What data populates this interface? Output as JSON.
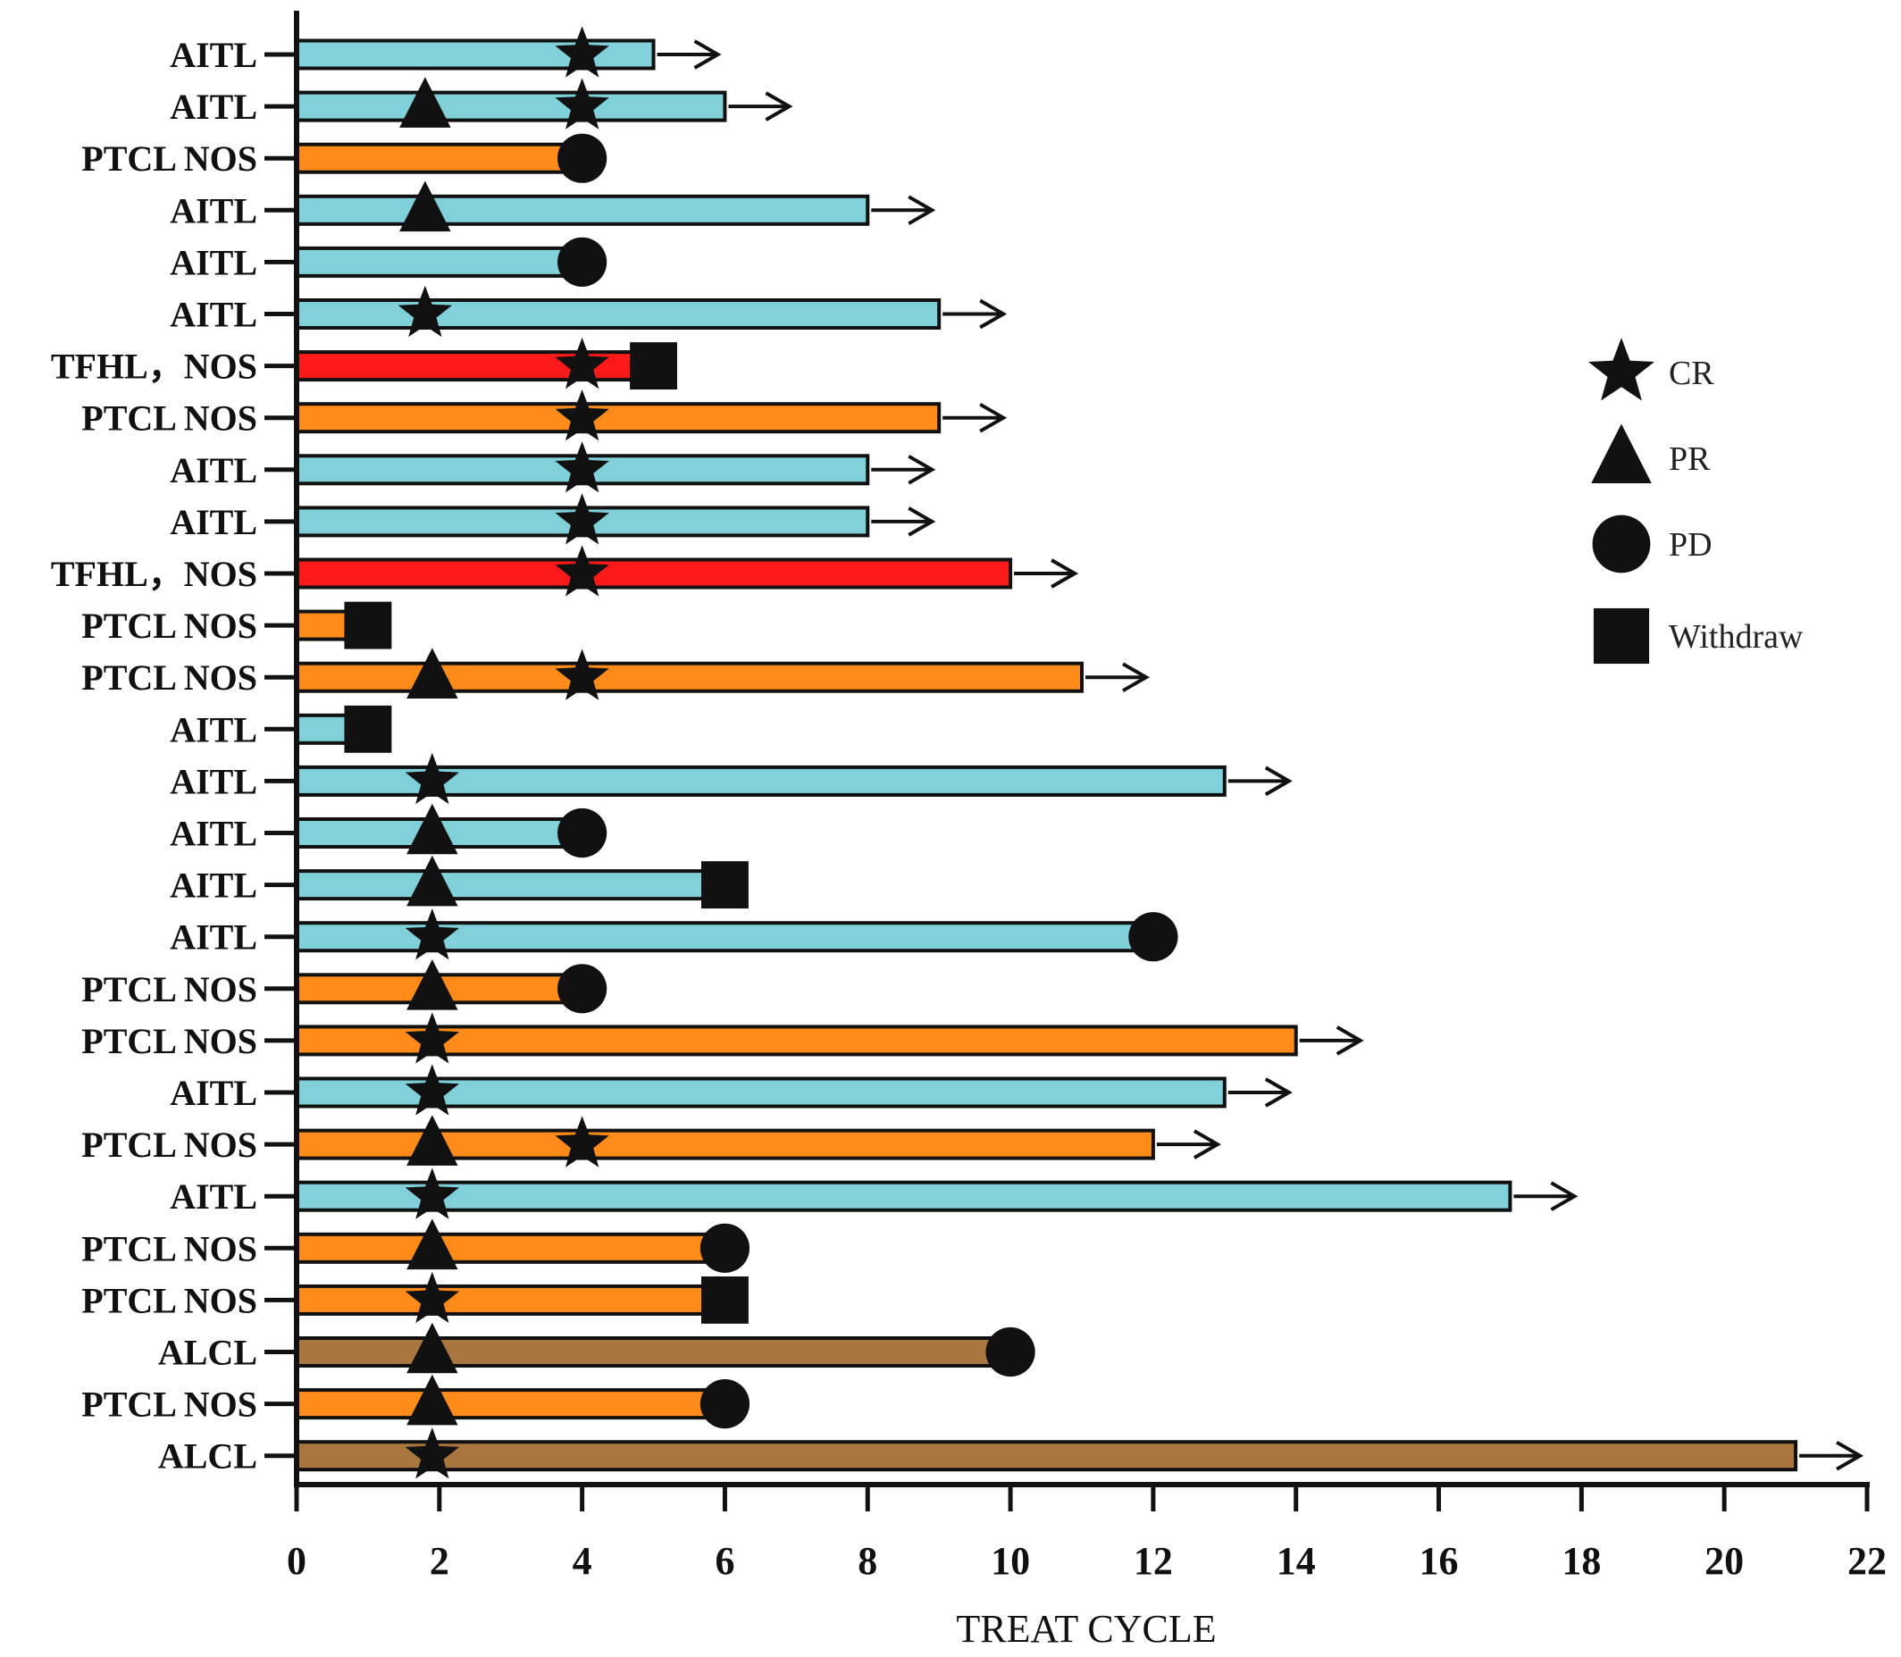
{
  "chart_data": {
    "type": "bar",
    "orientation": "horizontal",
    "title": "",
    "xlabel": "TREAT CYCLE",
    "ylabel": "",
    "xlim": [
      0,
      22
    ],
    "xticks": [
      0,
      2,
      4,
      6,
      8,
      10,
      12,
      14,
      16,
      18,
      20,
      22
    ],
    "grid": false,
    "legend_position": "right",
    "colors": {
      "AITL": "#7fd0d8",
      "PTCL NOS": "#ff8c1a",
      "TFHL": "#ff1a1a",
      "ALCL": "#a8763e",
      "outline": "#111111"
    },
    "legend": [
      {
        "marker": "star",
        "label": "CR"
      },
      {
        "marker": "triangle",
        "label": "PR"
      },
      {
        "marker": "circle",
        "label": "PD"
      },
      {
        "marker": "square",
        "label": "Withdraw"
      }
    ],
    "patients": [
      {
        "label": "AITL",
        "type": "AITL",
        "cycles": 5,
        "ongoing": true,
        "events": [
          {
            "cycle": 4,
            "marker": "star"
          }
        ]
      },
      {
        "label": "AITL",
        "type": "AITL",
        "cycles": 6,
        "ongoing": true,
        "events": [
          {
            "cycle": 1.8,
            "marker": "triangle"
          },
          {
            "cycle": 4,
            "marker": "star"
          }
        ]
      },
      {
        "label": "PTCL NOS",
        "type": "PTCL NOS",
        "cycles": 4,
        "ongoing": false,
        "events": [
          {
            "cycle": 4,
            "marker": "circle"
          }
        ]
      },
      {
        "label": "AITL",
        "type": "AITL",
        "cycles": 8,
        "ongoing": true,
        "events": [
          {
            "cycle": 1.8,
            "marker": "triangle"
          }
        ]
      },
      {
        "label": "AITL",
        "type": "AITL",
        "cycles": 4,
        "ongoing": false,
        "events": [
          {
            "cycle": 4,
            "marker": "circle"
          }
        ]
      },
      {
        "label": "AITL",
        "type": "AITL",
        "cycles": 9,
        "ongoing": true,
        "events": [
          {
            "cycle": 1.8,
            "marker": "star"
          }
        ]
      },
      {
        "label": "TFHL，NOS",
        "type": "TFHL",
        "cycles": 5,
        "ongoing": false,
        "events": [
          {
            "cycle": 4,
            "marker": "star"
          },
          {
            "cycle": 5,
            "marker": "square"
          }
        ]
      },
      {
        "label": "PTCL NOS",
        "type": "PTCL NOS",
        "cycles": 9,
        "ongoing": true,
        "events": [
          {
            "cycle": 4,
            "marker": "star"
          }
        ]
      },
      {
        "label": "AITL",
        "type": "AITL",
        "cycles": 8,
        "ongoing": true,
        "events": [
          {
            "cycle": 4,
            "marker": "star"
          }
        ]
      },
      {
        "label": "AITL",
        "type": "AITL",
        "cycles": 8,
        "ongoing": true,
        "events": [
          {
            "cycle": 4,
            "marker": "star"
          }
        ]
      },
      {
        "label": "TFHL，NOS",
        "type": "TFHL",
        "cycles": 10,
        "ongoing": true,
        "events": [
          {
            "cycle": 4,
            "marker": "star"
          }
        ]
      },
      {
        "label": "PTCL NOS",
        "type": "PTCL NOS",
        "cycles": 1,
        "ongoing": false,
        "events": [
          {
            "cycle": 1,
            "marker": "square"
          }
        ]
      },
      {
        "label": "PTCL NOS",
        "type": "PTCL NOS",
        "cycles": 11,
        "ongoing": true,
        "events": [
          {
            "cycle": 1.9,
            "marker": "triangle"
          },
          {
            "cycle": 4,
            "marker": "star"
          }
        ]
      },
      {
        "label": "AITL",
        "type": "AITL",
        "cycles": 1,
        "ongoing": false,
        "events": [
          {
            "cycle": 1,
            "marker": "square"
          }
        ]
      },
      {
        "label": "AITL",
        "type": "AITL",
        "cycles": 13,
        "ongoing": true,
        "events": [
          {
            "cycle": 1.9,
            "marker": "star"
          }
        ]
      },
      {
        "label": "AITL",
        "type": "AITL",
        "cycles": 4,
        "ongoing": false,
        "events": [
          {
            "cycle": 1.9,
            "marker": "triangle"
          },
          {
            "cycle": 4,
            "marker": "circle"
          }
        ]
      },
      {
        "label": "AITL",
        "type": "AITL",
        "cycles": 6,
        "ongoing": false,
        "events": [
          {
            "cycle": 1.9,
            "marker": "triangle"
          },
          {
            "cycle": 6,
            "marker": "square"
          }
        ]
      },
      {
        "label": "AITL",
        "type": "AITL",
        "cycles": 12,
        "ongoing": false,
        "events": [
          {
            "cycle": 1.9,
            "marker": "star"
          },
          {
            "cycle": 12,
            "marker": "circle"
          }
        ]
      },
      {
        "label": "PTCL NOS",
        "type": "PTCL NOS",
        "cycles": 4,
        "ongoing": false,
        "events": [
          {
            "cycle": 1.9,
            "marker": "triangle"
          },
          {
            "cycle": 4,
            "marker": "circle"
          }
        ]
      },
      {
        "label": "PTCL NOS",
        "type": "PTCL NOS",
        "cycles": 14,
        "ongoing": true,
        "events": [
          {
            "cycle": 1.9,
            "marker": "star"
          }
        ]
      },
      {
        "label": "AITL",
        "type": "AITL",
        "cycles": 13,
        "ongoing": true,
        "events": [
          {
            "cycle": 1.9,
            "marker": "star"
          }
        ]
      },
      {
        "label": "PTCL NOS",
        "type": "PTCL NOS",
        "cycles": 12,
        "ongoing": true,
        "events": [
          {
            "cycle": 1.9,
            "marker": "triangle"
          },
          {
            "cycle": 4,
            "marker": "star"
          }
        ]
      },
      {
        "label": "AITL",
        "type": "AITL",
        "cycles": 17,
        "ongoing": true,
        "events": [
          {
            "cycle": 1.9,
            "marker": "star"
          }
        ]
      },
      {
        "label": "PTCL NOS",
        "type": "PTCL NOS",
        "cycles": 6,
        "ongoing": false,
        "events": [
          {
            "cycle": 1.9,
            "marker": "triangle"
          },
          {
            "cycle": 6,
            "marker": "circle"
          }
        ]
      },
      {
        "label": "PTCL NOS",
        "type": "PTCL NOS",
        "cycles": 6,
        "ongoing": false,
        "events": [
          {
            "cycle": 1.9,
            "marker": "star"
          },
          {
            "cycle": 6,
            "marker": "square"
          }
        ]
      },
      {
        "label": "ALCL",
        "type": "ALCL",
        "cycles": 10,
        "ongoing": false,
        "events": [
          {
            "cycle": 1.9,
            "marker": "triangle"
          },
          {
            "cycle": 10,
            "marker": "circle"
          }
        ]
      },
      {
        "label": "PTCL NOS",
        "type": "PTCL NOS",
        "cycles": 6,
        "ongoing": false,
        "events": [
          {
            "cycle": 1.9,
            "marker": "triangle"
          },
          {
            "cycle": 6,
            "marker": "circle"
          }
        ]
      },
      {
        "label": "ALCL",
        "type": "ALCL",
        "cycles": 21,
        "ongoing": true,
        "events": [
          {
            "cycle": 1.9,
            "marker": "star"
          }
        ]
      }
    ]
  }
}
